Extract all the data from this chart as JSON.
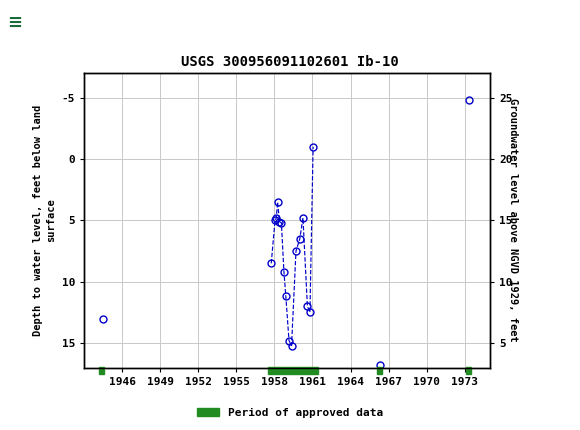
{
  "title": "USGS 300956091102601 Ib-10",
  "ylabel_left": "Depth to water level, feet below land\nsurface",
  "ylabel_right": "Groundwater level above NGVD 1929, feet",
  "bg_color": "#ffffff",
  "plot_bg_color": "#ffffff",
  "grid_color": "#c8c8c8",
  "header_color": "#1a6b3c",
  "clusters": [
    [
      {
        "year": 1944.5,
        "depth": 13.0
      }
    ],
    [
      {
        "year": 1957.75,
        "depth": 8.5
      },
      {
        "year": 1958.05,
        "depth": 5.0
      },
      {
        "year": 1958.15,
        "depth": 4.8
      },
      {
        "year": 1958.25,
        "depth": 3.5
      },
      {
        "year": 1958.4,
        "depth": 5.1
      },
      {
        "year": 1958.55,
        "depth": 5.2
      },
      {
        "year": 1958.75,
        "depth": 9.2
      },
      {
        "year": 1958.9,
        "depth": 11.2
      },
      {
        "year": 1959.15,
        "depth": 14.8
      },
      {
        "year": 1959.35,
        "depth": 15.2
      },
      {
        "year": 1959.7,
        "depth": 7.5
      },
      {
        "year": 1960.0,
        "depth": 6.5
      },
      {
        "year": 1960.25,
        "depth": 4.8
      },
      {
        "year": 1960.6,
        "depth": 12.0
      },
      {
        "year": 1960.8,
        "depth": 12.5
      },
      {
        "year": 1961.05,
        "depth": -1.0
      }
    ],
    [
      {
        "year": 1966.3,
        "depth": 16.8
      }
    ],
    [
      {
        "year": 1973.3,
        "depth": -4.8
      }
    ]
  ],
  "approved_periods": [
    {
      "start": 1944.2,
      "end": 1944.6
    },
    {
      "start": 1957.5,
      "end": 1961.4
    },
    {
      "start": 1966.1,
      "end": 1966.5
    },
    {
      "start": 1973.1,
      "end": 1973.5
    }
  ],
  "ylim_left": [
    17,
    -7
  ],
  "ylim_right": [
    3,
    27
  ],
  "xlim": [
    1943,
    1975
  ],
  "xticks": [
    1946,
    1949,
    1952,
    1955,
    1958,
    1961,
    1964,
    1967,
    1970,
    1973
  ],
  "yticks_left": [
    -5,
    0,
    5,
    10,
    15
  ],
  "yticks_right": [
    5,
    10,
    15,
    20,
    25
  ],
  "point_color": "#0000cc",
  "line_color": "#0000cc",
  "approved_color": "#228b22",
  "legend_label": "Period of approved data",
  "font_family": "monospace"
}
